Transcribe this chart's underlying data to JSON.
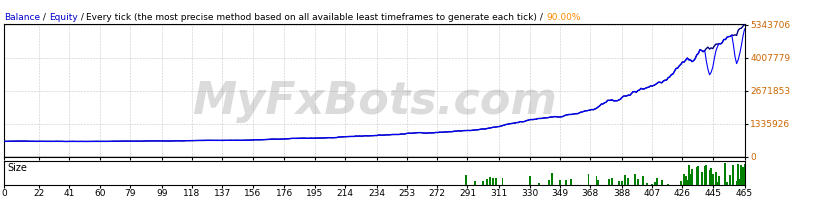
{
  "bg_color": "#ffffff",
  "grid_color": "#c8c8c8",
  "balance_color": "#000080",
  "equity_color": "#0000ff",
  "size_color": "#008000",
  "border_color": "#000000",
  "watermark_text": "MyFxBots.com",
  "watermark_color": "#888888",
  "x_ticks": [
    0,
    22,
    41,
    60,
    79,
    99,
    118,
    137,
    156,
    176,
    195,
    214,
    234,
    253,
    272,
    291,
    311,
    330,
    349,
    368,
    388,
    407,
    426,
    445,
    465
  ],
  "y_ticks": [
    0,
    1335926,
    2671853,
    4007779,
    5343706
  ],
  "y_max": 5343706,
  "y_min": 0,
  "x_min": 0,
  "x_max": 465,
  "ytick_color": "#cc6600",
  "xtick_color": "#000000",
  "title_parts": [
    [
      "Balance",
      "#0000cc"
    ],
    [
      " / ",
      "#000000"
    ],
    [
      "Equity",
      "#0000cc"
    ],
    [
      " / ",
      "#000000"
    ],
    [
      "Every tick (the most precise method based on all available least timeframes to generate each tick)",
      "#000000"
    ],
    [
      " / ",
      "#000000"
    ],
    [
      "90.00%",
      "#ff8800"
    ]
  ],
  "title_fontsize": 6.5,
  "tick_fontsize": 6.5,
  "size_label": "Size"
}
